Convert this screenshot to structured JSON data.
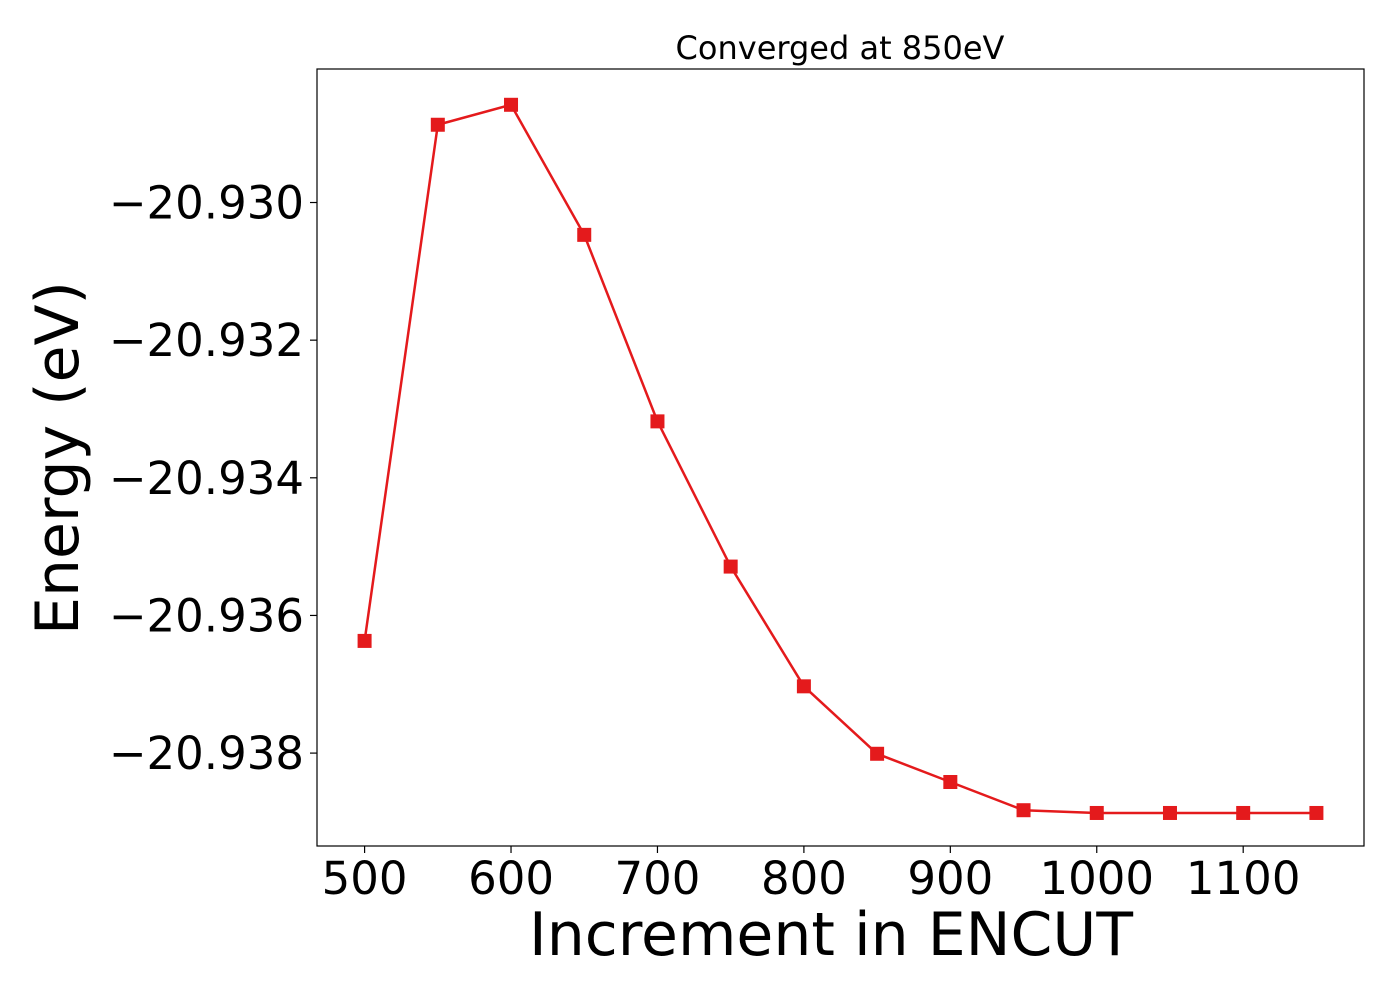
{
  "chart_data": {
    "type": "line",
    "title": "Converged at 850eV",
    "xlabel": "Increment in ENCUT",
    "ylabel": "Energy (eV)",
    "x": [
      500,
      550,
      600,
      650,
      700,
      750,
      800,
      850,
      900,
      950,
      1000,
      1050,
      1100,
      1150
    ],
    "series": [
      {
        "values": [
          -20.93637,
          -20.92887,
          -20.92858,
          -20.93047,
          -20.93318,
          -20.93529,
          -20.93703,
          -20.93801,
          -20.93842,
          -20.93883,
          -20.93887,
          -20.93887,
          -20.93887,
          -20.93887
        ],
        "color": "#e41a1c",
        "marker": "square"
      }
    ],
    "xlim": [
      467.5,
      1182.5
    ],
    "ylim": [
      -20.93935,
      -20.92806
    ],
    "xticks": [
      500,
      600,
      700,
      800,
      900,
      1000,
      1100
    ],
    "xtick_labels": [
      "500",
      "600",
      "700",
      "800",
      "900",
      "1000",
      "1100"
    ],
    "yticks": [
      -20.93,
      -20.932,
      -20.934,
      -20.936,
      -20.938
    ],
    "ytick_labels": [
      "−20.930",
      "−20.932",
      "−20.934",
      "−20.936",
      "−20.938"
    ],
    "grid": false,
    "legend": "none"
  }
}
